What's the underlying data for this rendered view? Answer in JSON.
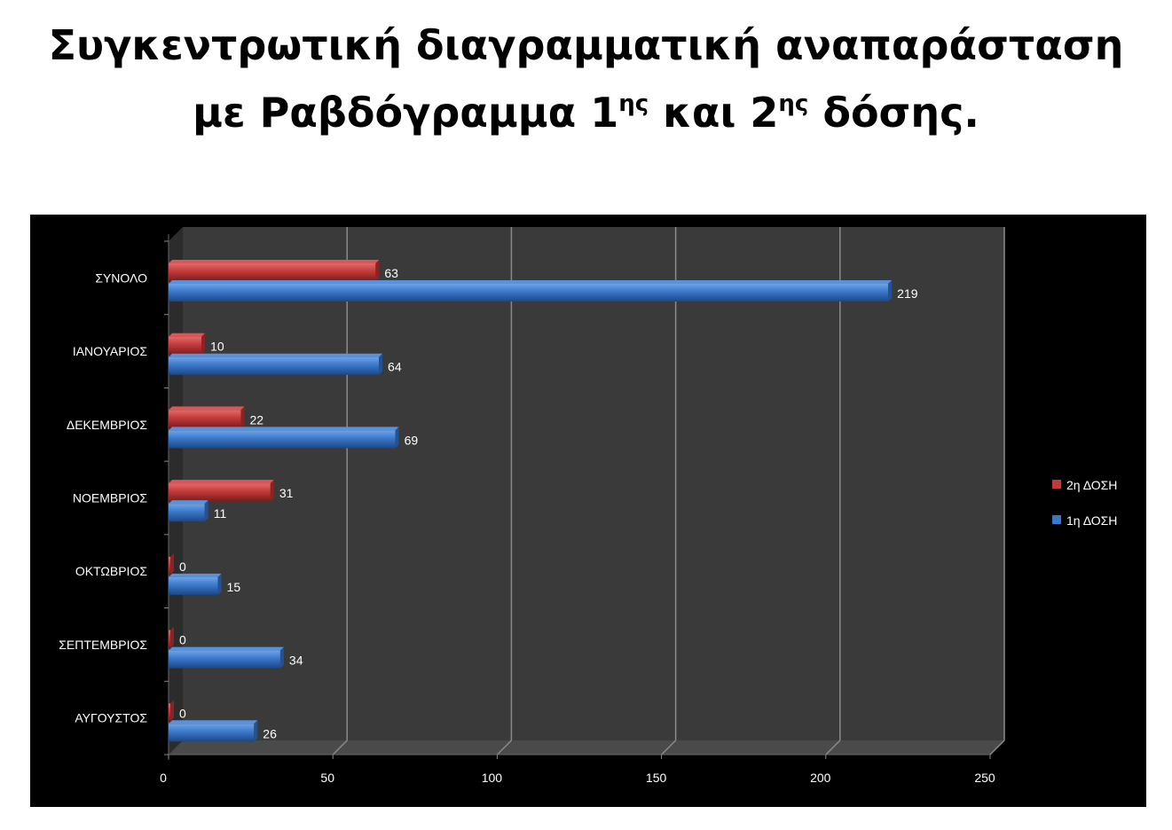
{
  "title": {
    "line1": "Συγκεντρωτική διαγραμματική αναπαράσταση",
    "line2_a": "με Ραβδόγραμμα 1",
    "line2_sup1": "ης",
    "line2_b": " και 2",
    "line2_sup2": "ης",
    "line2_c": " δόσης."
  },
  "colors": {
    "dose1": "#3a78c9",
    "dose2": "#c23a3a",
    "plot_bg": "#3a3a3a",
    "frame_bg": "#000000"
  },
  "chart_data": {
    "type": "bar",
    "orientation": "horizontal",
    "categories": [
      "ΣΥΝΟΛΟ",
      "ΙΑΝΟΥΑΡΙΟΣ",
      "ΔΕΚΕΜΒΡΙΟΣ",
      "ΝΟΕΜΒΡΙΟΣ",
      "ΟΚΤΩΒΡΙΟΣ",
      "ΣΕΠΤΕΜΒΡΙΟΣ",
      "ΑΥΓΟΥΣΤΟΣ"
    ],
    "series": [
      {
        "name": "2η ΔΟΣΗ",
        "values": [
          63,
          10,
          22,
          31,
          0,
          0,
          0
        ]
      },
      {
        "name": "1η ΔΟΣΗ",
        "values": [
          219,
          64,
          69,
          11,
          15,
          34,
          26
        ]
      }
    ],
    "xlim": [
      0,
      250
    ],
    "xticks": [
      0,
      50,
      100,
      150,
      200,
      250
    ],
    "grid": true,
    "legend": "right",
    "data_labels": true
  }
}
